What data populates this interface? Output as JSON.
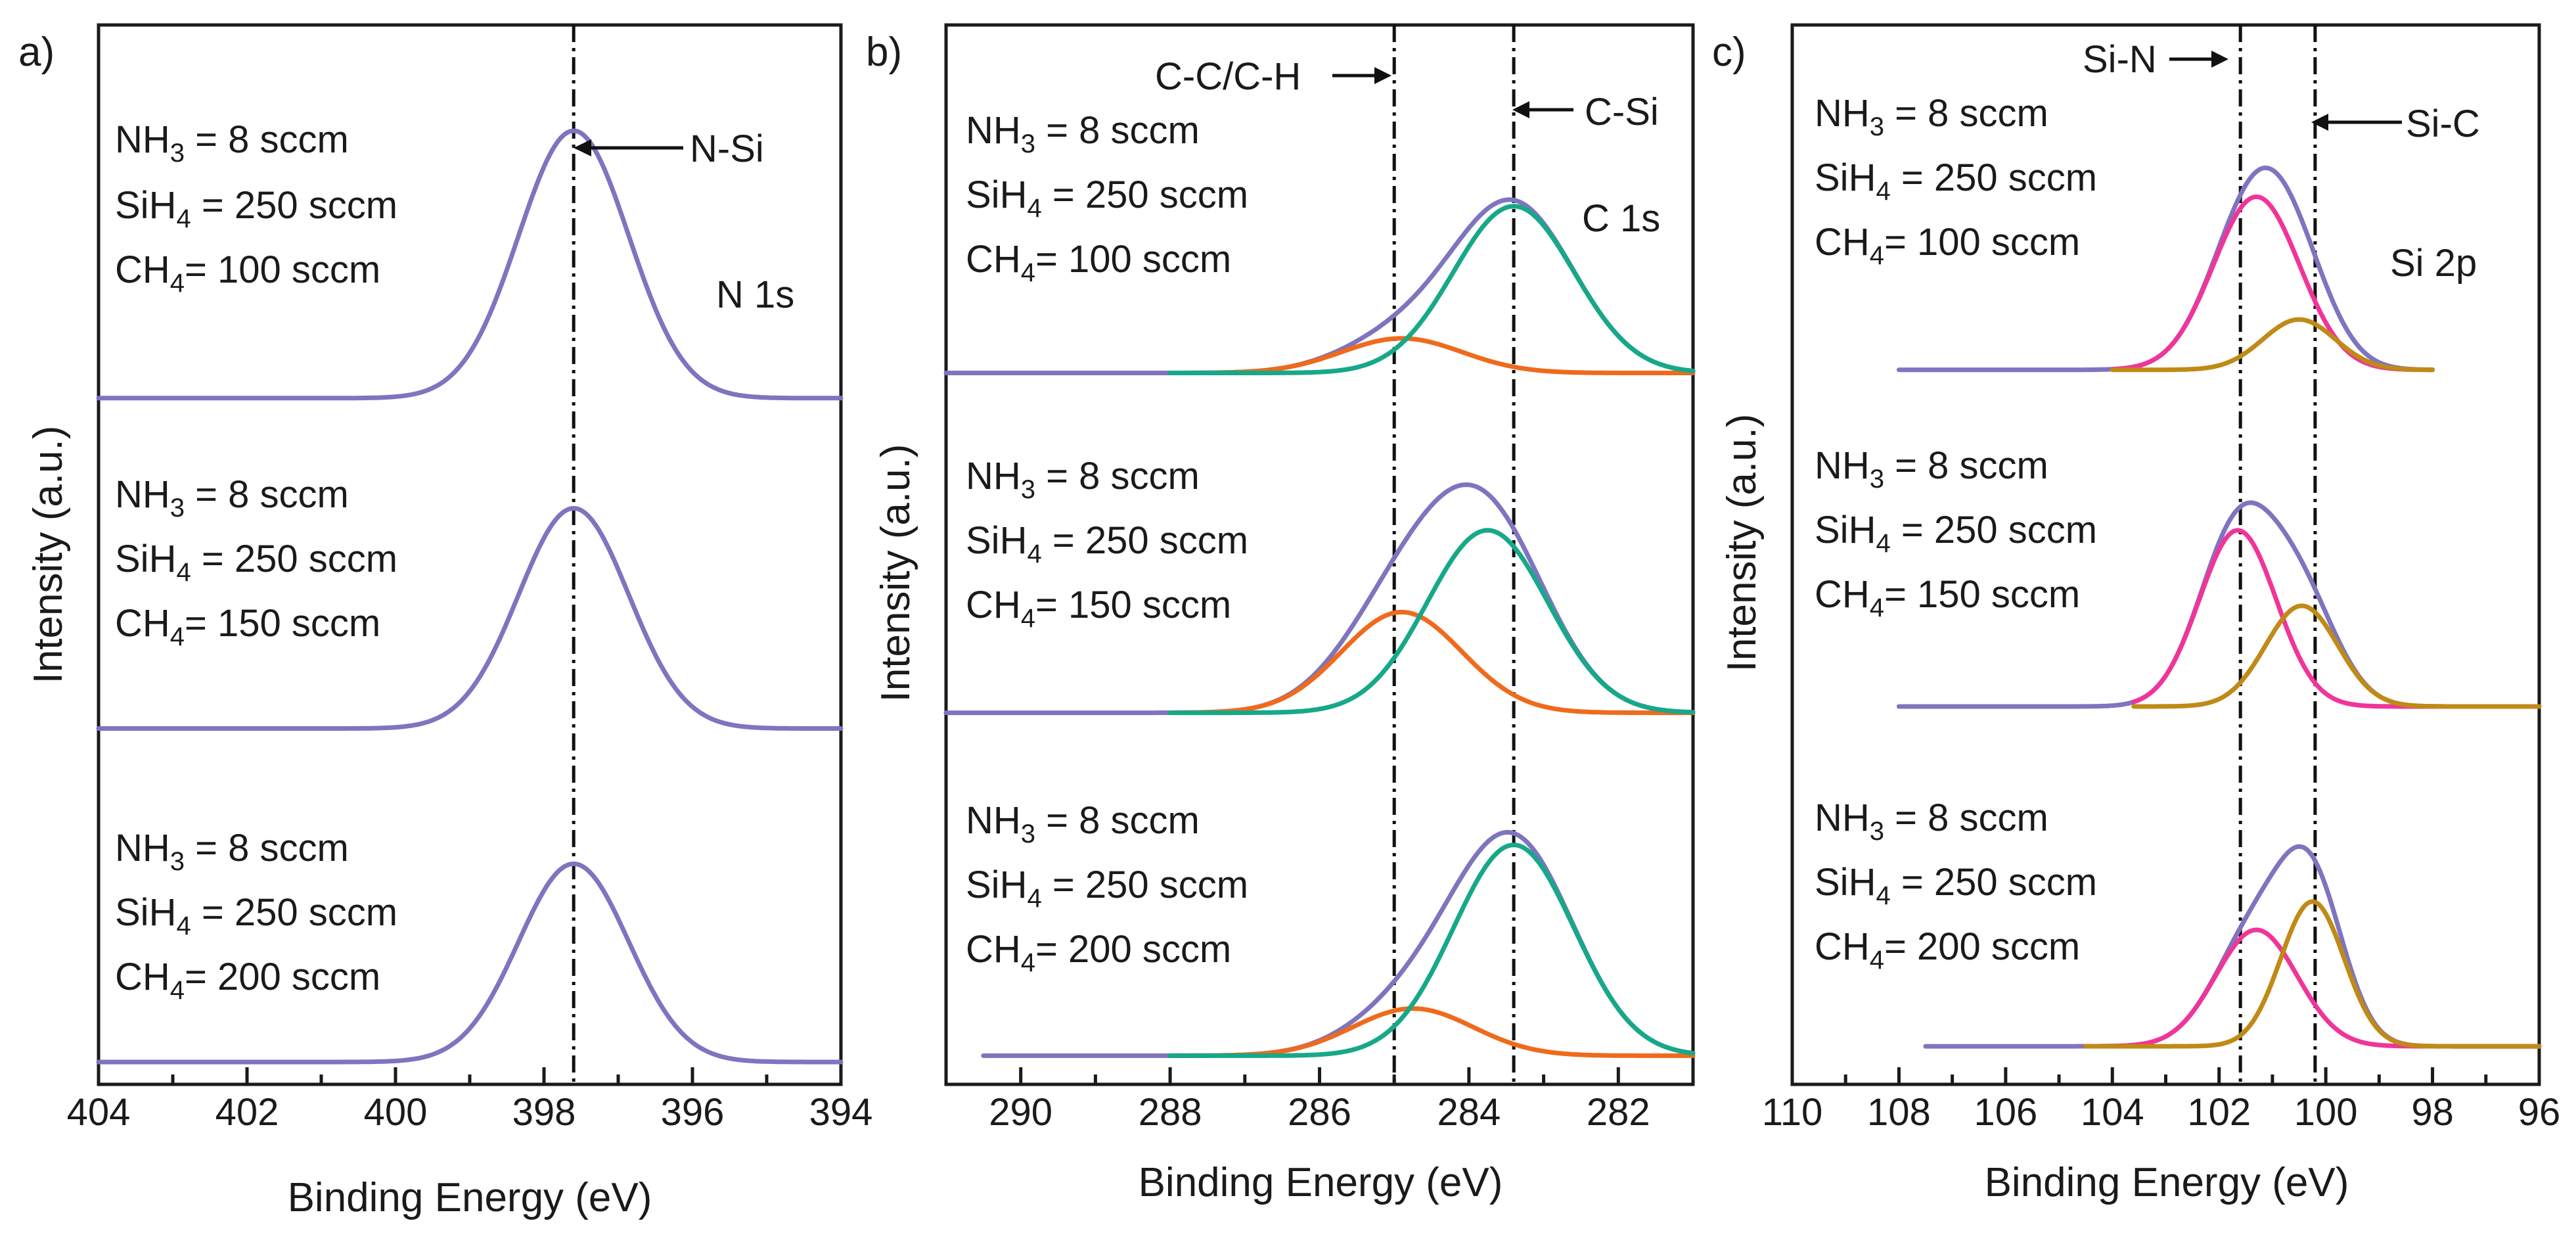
{
  "figure": {
    "panels": [
      {
        "letter": "a)",
        "core_level": "N 1s",
        "xlabel": "Binding Energy (eV)",
        "ylabel": "Intensity (a.u.)"
      },
      {
        "letter": "b)",
        "core_level": "C 1s",
        "xlabel": "Binding Energy (eV)",
        "ylabel": "Intensity (a.u.)"
      },
      {
        "letter": "c)",
        "core_level": "Si 2p",
        "xlabel": "Binding Energy (eV)",
        "ylabel": "Intensity (a.u.)"
      }
    ],
    "conditions": [
      {
        "nh3_prefix": "NH",
        "nh3_sub": "3",
        "nh3_value": " = 8 sccm",
        "sih4_prefix": "SiH",
        "sih4_sub": "4",
        "sih4_value": " = 250 sccm",
        "ch4_prefix": "CH",
        "ch4_sub": "4",
        "ch4_value": "= 100 sccm"
      },
      {
        "nh3_prefix": "NH",
        "nh3_sub": "3",
        "nh3_value": " = 8 sccm",
        "sih4_prefix": "SiH",
        "sih4_sub": "4",
        "sih4_value": " = 250 sccm",
        "ch4_prefix": "CH",
        "ch4_sub": "4",
        "ch4_value": "= 150 sccm"
      },
      {
        "nh3_prefix": "NH",
        "nh3_sub": "3",
        "nh3_value": " = 8 sccm",
        "sih4_prefix": "SiH",
        "sih4_sub": "4",
        "sih4_value": " = 250 sccm",
        "ch4_prefix": "CH",
        "ch4_sub": "4",
        "ch4_value": "= 200 sccm"
      }
    ]
  },
  "colors": {
    "envelope": "#7e74bf",
    "cc_component": "#ef6a1c",
    "csi_component": "#16a889",
    "sin_component": "#f0359a",
    "sic_component": "#c08a16",
    "axis": "#1a1a1a"
  },
  "chart_data": [
    {
      "type": "line",
      "title": "N 1s",
      "xlabel": "Binding Energy (eV)",
      "ylabel": "Intensity (a.u.)",
      "xlim": [
        404,
        394
      ],
      "x_reversed": true,
      "xticks": [
        404,
        402,
        400,
        398,
        396,
        394
      ],
      "ylim": [
        0,
        3.2
      ],
      "yticks_shown": false,
      "reference_lines": [
        {
          "x": 397.6,
          "label": "N-Si"
        }
      ],
      "series": [
        {
          "name": "CH4 = 100 sccm",
          "component": "envelope",
          "baseline": 2.11,
          "x_range": [
            404,
            394
          ],
          "peaks": [
            {
              "center": 397.6,
              "height": 0.85,
              "fwhm": 1.75
            }
          ]
        },
        {
          "name": "CH4 = 150 sccm",
          "component": "envelope",
          "baseline": 1.06,
          "x_range": [
            404,
            394
          ],
          "peaks": [
            {
              "center": 397.6,
              "height": 0.7,
              "fwhm": 1.75
            }
          ]
        },
        {
          "name": "CH4 = 200 sccm",
          "component": "envelope",
          "baseline": 0.0,
          "x_range": [
            404,
            394
          ],
          "peaks": [
            {
              "center": 397.6,
              "height": 0.63,
              "fwhm": 1.75
            }
          ]
        }
      ]
    },
    {
      "type": "line",
      "title": "C 1s",
      "xlabel": "Binding Energy (eV)",
      "ylabel": "Intensity (a.u.)",
      "xlim": [
        291,
        281
      ],
      "x_reversed": true,
      "xticks": [
        290,
        288,
        286,
        284,
        282
      ],
      "ylim": [
        0,
        3.2
      ],
      "yticks_shown": false,
      "reference_lines": [
        {
          "x": 285.0,
          "label": "C-C/C-H"
        },
        {
          "x": 283.4,
          "label": "C-Si"
        }
      ],
      "series": [
        {
          "name": "CH4 = 100 sccm",
          "component": "envelope",
          "baseline": 2.19,
          "x_range": [
            291,
            281
          ],
          "peaks": [
            {
              "center": 284.9,
              "height": 0.11,
              "fwhm": 1.9
            },
            {
              "center": 283.4,
              "height": 0.53,
              "fwhm": 1.9
            }
          ]
        },
        {
          "name": "CH4 = 100 sccm",
          "component": "C-C/C-H",
          "baseline": 2.19,
          "x_range": [
            288,
            281
          ],
          "peaks": [
            {
              "center": 284.9,
              "height": 0.11,
              "fwhm": 1.9
            }
          ]
        },
        {
          "name": "CH4 = 100 sccm",
          "component": "C-Si",
          "baseline": 2.19,
          "x_range": [
            288,
            281
          ],
          "peaks": [
            {
              "center": 283.4,
              "height": 0.53,
              "fwhm": 1.9
            }
          ]
        },
        {
          "name": "CH4 = 150 sccm",
          "component": "envelope",
          "baseline": 1.11,
          "x_range": [
            291,
            281
          ],
          "peaks": [
            {
              "center": 284.9,
              "height": 0.32,
              "fwhm": 1.9
            },
            {
              "center": 283.75,
              "height": 0.58,
              "fwhm": 1.9
            }
          ]
        },
        {
          "name": "CH4 = 150 sccm",
          "component": "C-C/C-H",
          "baseline": 1.11,
          "x_range": [
            288,
            281
          ],
          "peaks": [
            {
              "center": 284.9,
              "height": 0.32,
              "fwhm": 1.9
            }
          ]
        },
        {
          "name": "CH4 = 150 sccm",
          "component": "C-Si",
          "baseline": 1.11,
          "x_range": [
            288,
            281
          ],
          "peaks": [
            {
              "center": 283.75,
              "height": 0.58,
              "fwhm": 1.9
            }
          ]
        },
        {
          "name": "CH4 = 200 sccm",
          "component": "envelope",
          "baseline": 0.02,
          "x_range": [
            290.5,
            281
          ],
          "peaks": [
            {
              "center": 284.75,
              "height": 0.15,
              "fwhm": 1.9
            },
            {
              "center": 283.4,
              "height": 0.67,
              "fwhm": 1.9
            }
          ]
        },
        {
          "name": "CH4 = 200 sccm",
          "component": "C-C/C-H",
          "baseline": 0.02,
          "x_range": [
            288,
            281
          ],
          "peaks": [
            {
              "center": 284.75,
              "height": 0.15,
              "fwhm": 1.9
            }
          ]
        },
        {
          "name": "CH4 = 200 sccm",
          "component": "C-Si",
          "baseline": 0.02,
          "x_range": [
            288,
            281
          ],
          "peaks": [
            {
              "center": 283.4,
              "height": 0.67,
              "fwhm": 1.9
            }
          ]
        }
      ]
    },
    {
      "type": "line",
      "title": "Si 2p",
      "xlabel": "Binding Energy (eV)",
      "ylabel": "Intensity (a.u.)",
      "xlim": [
        110,
        96
      ],
      "x_reversed": true,
      "xticks": [
        110,
        108,
        106,
        104,
        102,
        100,
        98,
        96
      ],
      "ylim": [
        0,
        3.2
      ],
      "yticks_shown": false,
      "reference_lines": [
        {
          "x": 101.6,
          "label": "Si-N"
        },
        {
          "x": 100.2,
          "label": "Si-C"
        }
      ],
      "series": [
        {
          "name": "CH4 = 100 sccm",
          "component": "envelope",
          "baseline": 2.2,
          "x_range": [
            108,
            98
          ],
          "peaks": [
            {
              "center": 101.3,
              "height": 0.55,
              "fwhm": 1.9
            },
            {
              "center": 100.5,
              "height": 0.16,
              "fwhm": 1.6
            }
          ]
        },
        {
          "name": "CH4 = 100 sccm",
          "component": "Si-N",
          "baseline": 2.2,
          "x_range": [
            104,
            98
          ],
          "peaks": [
            {
              "center": 101.3,
              "height": 0.55,
              "fwhm": 1.9
            }
          ]
        },
        {
          "name": "CH4 = 100 sccm",
          "component": "Si-C",
          "baseline": 2.2,
          "x_range": [
            104,
            98
          ],
          "peaks": [
            {
              "center": 100.5,
              "height": 0.16,
              "fwhm": 1.6
            }
          ]
        },
        {
          "name": "CH4 = 150 sccm",
          "component": "envelope",
          "baseline": 1.13,
          "x_range": [
            108,
            96
          ],
          "peaks": [
            {
              "center": 101.65,
              "height": 0.56,
              "fwhm": 1.7
            },
            {
              "center": 100.45,
              "height": 0.32,
              "fwhm": 1.6
            }
          ]
        },
        {
          "name": "CH4 = 150 sccm",
          "component": "Si-N",
          "baseline": 1.13,
          "x_range": [
            103.6,
            96
          ],
          "peaks": [
            {
              "center": 101.65,
              "height": 0.56,
              "fwhm": 1.7
            }
          ]
        },
        {
          "name": "CH4 = 150 sccm",
          "component": "Si-C",
          "baseline": 1.13,
          "x_range": [
            103.6,
            96
          ],
          "peaks": [
            {
              "center": 100.45,
              "height": 0.32,
              "fwhm": 1.6
            }
          ]
        },
        {
          "name": "CH4 = 200 sccm",
          "component": "envelope",
          "baseline": 0.05,
          "x_range": [
            107.5,
            96
          ],
          "peaks": [
            {
              "center": 101.3,
              "height": 0.37,
              "fwhm": 1.8
            },
            {
              "center": 100.25,
              "height": 0.46,
              "fwhm": 1.4
            }
          ]
        },
        {
          "name": "CH4 = 200 sccm",
          "component": "Si-N",
          "baseline": 0.05,
          "x_range": [
            104.5,
            96
          ],
          "peaks": [
            {
              "center": 101.3,
              "height": 0.37,
              "fwhm": 1.8
            }
          ]
        },
        {
          "name": "CH4 = 200 sccm",
          "component": "Si-C",
          "baseline": 0.05,
          "x_range": [
            104.5,
            96
          ],
          "peaks": [
            {
              "center": 100.25,
              "height": 0.46,
              "fwhm": 1.4
            }
          ]
        }
      ]
    }
  ]
}
